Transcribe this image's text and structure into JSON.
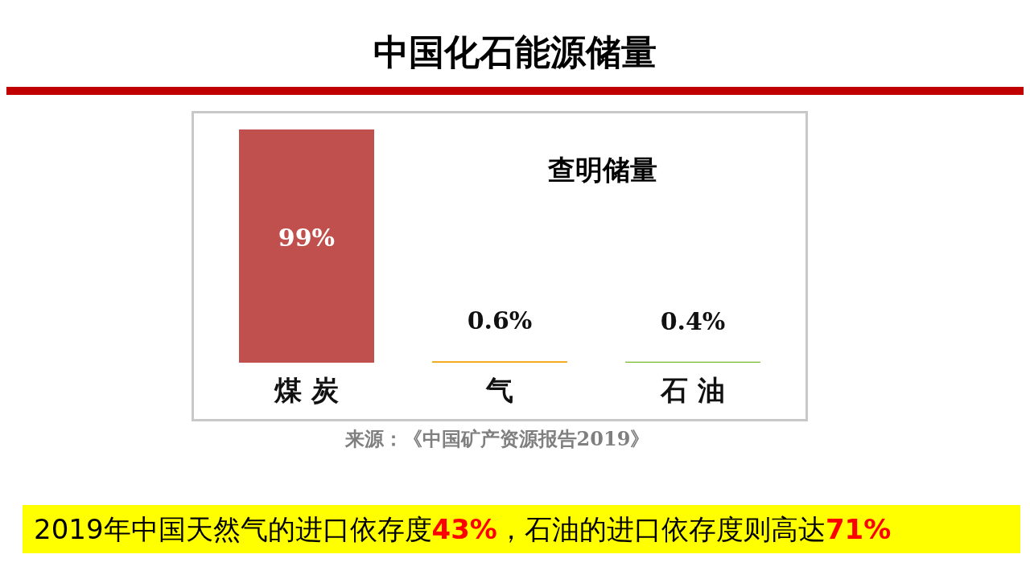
{
  "chart_data": {
    "type": "bar",
    "title": "中国化石能源储量",
    "subtitle": "查明储量",
    "categories": [
      "煤 炭",
      "气",
      "石 油"
    ],
    "values": [
      99,
      0.6,
      0.4
    ],
    "value_labels": [
      "99%",
      "0.6%",
      "0.4%"
    ],
    "colors": [
      "#c0504d",
      "#f0a000",
      "#7cb82f"
    ],
    "grid": false,
    "annotations": [
      "来源：《中国矿产资源报告2019》",
      "2019年中国天然气的进口依存度43%，石油的进口依存度则高达71%"
    ]
  }
}
